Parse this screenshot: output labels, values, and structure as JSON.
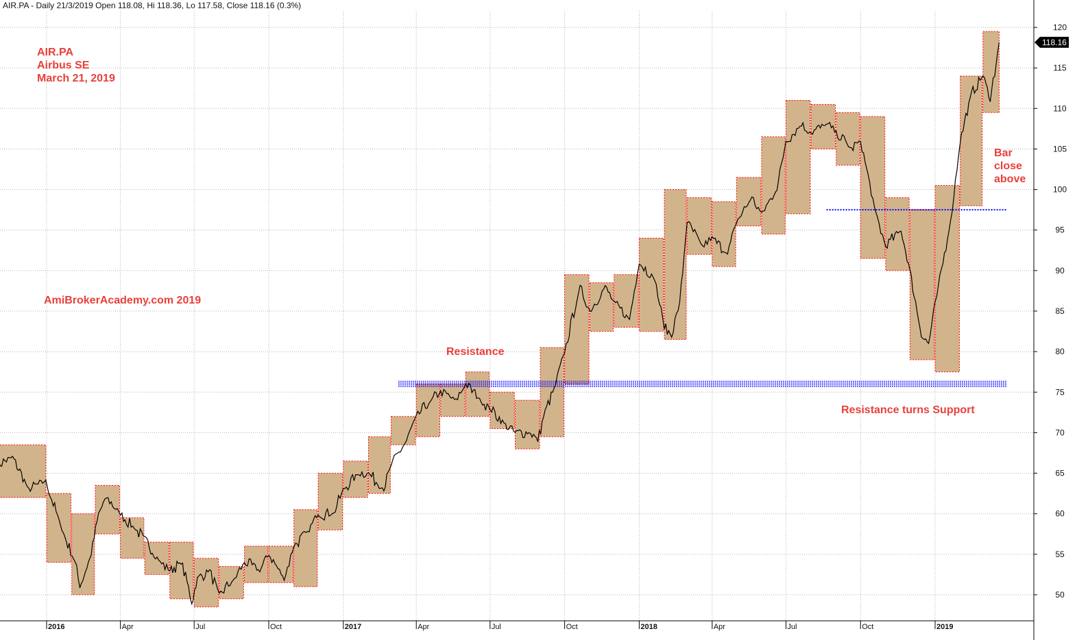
{
  "header": {
    "title": "AIR.PA - Daily 21/3/2019 Open 118.08, Hi 118.36, Lo 117.58, Close 118.16 (0.3%)"
  },
  "annotations": {
    "ticker": "AIR.PA",
    "company": "Airbus SE",
    "date": "March 21, 2019",
    "watermark": "AmiBrokerAcademy.com  2019",
    "resistance": "Resistance",
    "support": "Resistance turns Support",
    "bar_close_1": "Bar",
    "bar_close_2": "close",
    "bar_close_3": "above"
  },
  "last_price_label": "118.16",
  "colors": {
    "box_fill": "#d2b48c",
    "box_border": "#ff0000",
    "price_line": "#000000",
    "level_line": "#0000ff",
    "grid": "#b0b0b0",
    "annotation": "#e8403a"
  },
  "chart_data": {
    "type": "line",
    "title": "AIR.PA",
    "subtitle": "Airbus SE",
    "xlabel": "",
    "ylabel": "",
    "ylim": [
      48,
      122
    ],
    "xlim": [
      "2015-11-01",
      "2019-04-08"
    ],
    "y_axis_position": "right",
    "grid": true,
    "y_ticks": [
      50,
      55,
      60,
      65,
      70,
      75,
      80,
      85,
      90,
      95,
      100,
      105,
      110,
      115,
      120
    ],
    "x_ticks": [
      {
        "date": "2016-01-01",
        "label": "2016",
        "year": true
      },
      {
        "date": "2016-04-01",
        "label": "Apr",
        "year": false
      },
      {
        "date": "2016-07-01",
        "label": "Jul",
        "year": false
      },
      {
        "date": "2016-10-01",
        "label": "Oct",
        "year": false
      },
      {
        "date": "2017-01-01",
        "label": "2017",
        "year": true
      },
      {
        "date": "2017-04-01",
        "label": "Apr",
        "year": false
      },
      {
        "date": "2017-07-01",
        "label": "Jul",
        "year": false
      },
      {
        "date": "2017-10-01",
        "label": "Oct",
        "year": false
      },
      {
        "date": "2018-01-01",
        "label": "2018",
        "year": true
      },
      {
        "date": "2018-04-01",
        "label": "Apr",
        "year": false
      },
      {
        "date": "2018-07-01",
        "label": "Jul",
        "year": false
      },
      {
        "date": "2018-10-01",
        "label": "Oct",
        "year": false
      },
      {
        "date": "2019-01-01",
        "label": "2019",
        "year": true
      }
    ],
    "price_series": {
      "name": "Close",
      "x": [
        "2015-11-01",
        "2015-11-20",
        "2015-12-10",
        "2015-12-31",
        "2016-01-20",
        "2016-02-05",
        "2016-02-11",
        "2016-02-25",
        "2016-03-05",
        "2016-03-15",
        "2016-04-01",
        "2016-04-20",
        "2016-05-01",
        "2016-05-20",
        "2016-06-01",
        "2016-06-15",
        "2016-06-24",
        "2016-06-28",
        "2016-07-05",
        "2016-07-20",
        "2016-08-01",
        "2016-08-20",
        "2016-09-01",
        "2016-09-20",
        "2016-10-01",
        "2016-10-20",
        "2016-11-01",
        "2016-11-20",
        "2016-12-01",
        "2016-12-20",
        "2017-01-01",
        "2017-01-20",
        "2017-02-01",
        "2017-02-20",
        "2017-03-01",
        "2017-03-20",
        "2017-04-01",
        "2017-04-20",
        "2017-05-01",
        "2017-05-20",
        "2017-06-01",
        "2017-06-20",
        "2017-07-01",
        "2017-07-20",
        "2017-08-01",
        "2017-08-20",
        "2017-08-29",
        "2017-09-05",
        "2017-09-20",
        "2017-10-01",
        "2017-10-20",
        "2017-11-01",
        "2017-11-20",
        "2017-12-01",
        "2017-12-20",
        "2018-01-01",
        "2018-01-20",
        "2018-02-01",
        "2018-02-10",
        "2018-02-20",
        "2018-03-01",
        "2018-03-20",
        "2018-04-01",
        "2018-04-20",
        "2018-05-01",
        "2018-05-20",
        "2018-06-01",
        "2018-06-20",
        "2018-07-01",
        "2018-07-20",
        "2018-08-01",
        "2018-08-20",
        "2018-09-01",
        "2018-09-20",
        "2018-10-01",
        "2018-10-20",
        "2018-11-01",
        "2018-11-20",
        "2018-12-01",
        "2018-12-15",
        "2018-12-24",
        "2019-01-05",
        "2019-01-20",
        "2019-02-01",
        "2019-02-15",
        "2019-03-01",
        "2019-03-10",
        "2019-03-21"
      ],
      "y": [
        66,
        67,
        63,
        64,
        58,
        54,
        51,
        55,
        60,
        62,
        60,
        58,
        57,
        54,
        53,
        54,
        51,
        49,
        52,
        53,
        50,
        52,
        54,
        53,
        55,
        52,
        56,
        58,
        60,
        60,
        63,
        65,
        65,
        63,
        66,
        69,
        72,
        74,
        75,
        74,
        76,
        74,
        73,
        71,
        70,
        70,
        69,
        72,
        76,
        80,
        88,
        85,
        88,
        86,
        84,
        91,
        89,
        83,
        82,
        86,
        96,
        93,
        94,
        92,
        96,
        99,
        97,
        100,
        106,
        108,
        107,
        108,
        107,
        105,
        106,
        97,
        93,
        95,
        90,
        82,
        81,
        88,
        96,
        106,
        112,
        114,
        111,
        118.16
      ]
    },
    "quarter_boxes": [
      {
        "start": "2015-11-01",
        "end": "2015-12-31",
        "high": 68.5,
        "low": 62.0
      },
      {
        "start": "2016-01-01",
        "end": "2016-01-31",
        "high": 62.5,
        "low": 54.0
      },
      {
        "start": "2016-02-01",
        "end": "2016-02-29",
        "high": 60.0,
        "low": 50.0
      },
      {
        "start": "2016-03-01",
        "end": "2016-03-31",
        "high": 63.5,
        "low": 57.5
      },
      {
        "start": "2016-04-01",
        "end": "2016-04-30",
        "high": 59.5,
        "low": 54.5
      },
      {
        "start": "2016-05-01",
        "end": "2016-05-31",
        "high": 56.5,
        "low": 52.5
      },
      {
        "start": "2016-06-01",
        "end": "2016-06-30",
        "high": 56.5,
        "low": 49.5
      },
      {
        "start": "2016-07-01",
        "end": "2016-07-31",
        "high": 54.5,
        "low": 48.5
      },
      {
        "start": "2016-08-01",
        "end": "2016-08-31",
        "high": 53.5,
        "low": 49.5
      },
      {
        "start": "2016-09-01",
        "end": "2016-09-30",
        "high": 56.0,
        "low": 51.5
      },
      {
        "start": "2016-10-01",
        "end": "2016-10-31",
        "high": 56.0,
        "low": 51.5
      },
      {
        "start": "2016-11-01",
        "end": "2016-11-30",
        "high": 60.5,
        "low": 51.0
      },
      {
        "start": "2016-12-01",
        "end": "2016-12-31",
        "high": 65.0,
        "low": 58.0
      },
      {
        "start": "2017-01-01",
        "end": "2017-01-31",
        "high": 66.5,
        "low": 62.0
      },
      {
        "start": "2017-02-01",
        "end": "2017-02-28",
        "high": 69.5,
        "low": 62.5
      },
      {
        "start": "2017-03-01",
        "end": "2017-03-31",
        "high": 72.0,
        "low": 68.5
      },
      {
        "start": "2017-04-01",
        "end": "2017-04-30",
        "high": 76.0,
        "low": 69.5
      },
      {
        "start": "2017-05-01",
        "end": "2017-05-31",
        "high": 76.0,
        "low": 72.0
      },
      {
        "start": "2017-06-01",
        "end": "2017-06-30",
        "high": 77.5,
        "low": 72.0
      },
      {
        "start": "2017-07-01",
        "end": "2017-07-31",
        "high": 75.0,
        "low": 70.5
      },
      {
        "start": "2017-08-01",
        "end": "2017-08-31",
        "high": 74.0,
        "low": 68.0
      },
      {
        "start": "2017-09-01",
        "end": "2017-09-30",
        "high": 80.5,
        "low": 69.5
      },
      {
        "start": "2017-10-01",
        "end": "2017-10-31",
        "high": 89.5,
        "low": 76.0
      },
      {
        "start": "2017-11-01",
        "end": "2017-11-30",
        "high": 88.5,
        "low": 82.5
      },
      {
        "start": "2017-12-01",
        "end": "2017-12-31",
        "high": 89.5,
        "low": 83.0
      },
      {
        "start": "2018-01-01",
        "end": "2018-01-31",
        "high": 94.0,
        "low": 82.5
      },
      {
        "start": "2018-02-01",
        "end": "2018-02-28",
        "high": 100.0,
        "low": 81.5
      },
      {
        "start": "2018-03-01",
        "end": "2018-03-31",
        "high": 99.0,
        "low": 92.0
      },
      {
        "start": "2018-04-01",
        "end": "2018-04-30",
        "high": 98.5,
        "low": 90.5
      },
      {
        "start": "2018-05-01",
        "end": "2018-05-31",
        "high": 101.5,
        "low": 95.5
      },
      {
        "start": "2018-06-01",
        "end": "2018-06-30",
        "high": 106.5,
        "low": 94.5
      },
      {
        "start": "2018-07-01",
        "end": "2018-07-31",
        "high": 111.0,
        "low": 97.0
      },
      {
        "start": "2018-08-01",
        "end": "2018-08-31",
        "high": 110.5,
        "low": 105.0
      },
      {
        "start": "2018-09-01",
        "end": "2018-09-30",
        "high": 109.5,
        "low": 103.0
      },
      {
        "start": "2018-10-01",
        "end": "2018-10-31",
        "high": 109.0,
        "low": 91.5
      },
      {
        "start": "2018-11-01",
        "end": "2018-11-30",
        "high": 99.0,
        "low": 90.0
      },
      {
        "start": "2018-12-01",
        "end": "2018-12-31",
        "high": 97.5,
        "low": 79.0
      },
      {
        "start": "2019-01-01",
        "end": "2019-01-31",
        "high": 100.5,
        "low": 77.5
      },
      {
        "start": "2019-02-01",
        "end": "2019-02-28",
        "high": 114.0,
        "low": 98.0
      },
      {
        "start": "2019-03-01",
        "end": "2019-03-21",
        "high": 119.5,
        "low": 109.5
      }
    ],
    "levels": [
      {
        "name": "Resistance",
        "value": 76.0,
        "start": "2017-03-10",
        "end": "2019-03-31",
        "thick": true
      },
      {
        "name": "Bar close above",
        "value": 97.5,
        "start": "2018-08-20",
        "end": "2019-03-31",
        "thick": false
      }
    ]
  }
}
